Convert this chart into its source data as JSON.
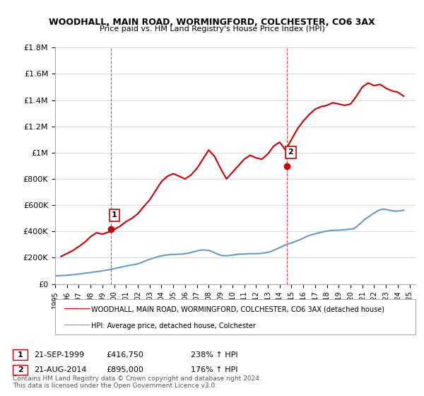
{
  "title": "WOODHALL, MAIN ROAD, WORMINGFORD, COLCHESTER, CO6 3AX",
  "subtitle": "Price paid vs. HM Land Registry's House Price Index (HPI)",
  "ylim": [
    0,
    1800000
  ],
  "xlim_start": 1995.0,
  "xlim_end": 2025.5,
  "yticks": [
    0,
    200000,
    400000,
    600000,
    800000,
    1000000,
    1200000,
    1400000,
    1600000,
    1800000
  ],
  "ytick_labels": [
    "£0",
    "£200K",
    "£400K",
    "£600K",
    "£800K",
    "£1M",
    "£1.2M",
    "£1.4M",
    "£1.6M",
    "£1.8M"
  ],
  "xtick_years": [
    1995,
    1996,
    1997,
    1998,
    1999,
    2000,
    2001,
    2002,
    2003,
    2004,
    2005,
    2006,
    2007,
    2008,
    2009,
    2010,
    2011,
    2012,
    2013,
    2014,
    2015,
    2016,
    2017,
    2018,
    2019,
    2020,
    2021,
    2022,
    2023,
    2024,
    2025
  ],
  "red_line_color": "#cc0000",
  "blue_line_color": "#6699cc",
  "vline_color": "#cc0000",
  "point1_x": 1999.72,
  "point1_y": 416750,
  "point2_x": 2014.64,
  "point2_y": 895000,
  "legend_label_red": "WOODHALL, MAIN ROAD, WORMINGFORD, COLCHESTER, CO6 3AX (detached house)",
  "legend_label_blue": "HPI: Average price, detached house, Colchester",
  "transaction1_label": "1",
  "transaction1_date": "21-SEP-1999",
  "transaction1_price": "£416,750",
  "transaction1_hpi": "238% ↑ HPI",
  "transaction2_label": "2",
  "transaction2_date": "21-AUG-2014",
  "transaction2_price": "£895,000",
  "transaction2_hpi": "176% ↑ HPI",
  "copyright_text": "Contains HM Land Registry data © Crown copyright and database right 2024.\nThis data is licensed under the Open Government Licence v3.0.",
  "background_color": "#ffffff",
  "grid_color": "#dddddd",
  "hpi_data_x": [
    1995.0,
    1995.25,
    1995.5,
    1995.75,
    1996.0,
    1996.25,
    1996.5,
    1996.75,
    1997.0,
    1997.25,
    1997.5,
    1997.75,
    1998.0,
    1998.25,
    1998.5,
    1998.75,
    1999.0,
    1999.25,
    1999.5,
    1999.75,
    2000.0,
    2000.25,
    2000.5,
    2000.75,
    2001.0,
    2001.25,
    2001.5,
    2001.75,
    2002.0,
    2002.25,
    2002.5,
    2002.75,
    2003.0,
    2003.25,
    2003.5,
    2003.75,
    2004.0,
    2004.25,
    2004.5,
    2004.75,
    2005.0,
    2005.25,
    2005.5,
    2005.75,
    2006.0,
    2006.25,
    2006.5,
    2006.75,
    2007.0,
    2007.25,
    2007.5,
    2007.75,
    2008.0,
    2008.25,
    2008.5,
    2008.75,
    2009.0,
    2009.25,
    2009.5,
    2009.75,
    2010.0,
    2010.25,
    2010.5,
    2010.75,
    2011.0,
    2011.25,
    2011.5,
    2011.75,
    2012.0,
    2012.25,
    2012.5,
    2012.75,
    2013.0,
    2013.25,
    2013.5,
    2013.75,
    2014.0,
    2014.25,
    2014.5,
    2014.75,
    2015.0,
    2015.25,
    2015.5,
    2015.75,
    2016.0,
    2016.25,
    2016.5,
    2016.75,
    2017.0,
    2017.25,
    2017.5,
    2017.75,
    2018.0,
    2018.25,
    2018.5,
    2018.75,
    2019.0,
    2019.25,
    2019.5,
    2019.75,
    2020.0,
    2020.25,
    2020.5,
    2020.75,
    2021.0,
    2021.25,
    2021.5,
    2021.75,
    2022.0,
    2022.25,
    2022.5,
    2022.75,
    2023.0,
    2023.25,
    2023.5,
    2023.75,
    2024.0,
    2024.25,
    2024.5
  ],
  "hpi_data_y": [
    62000,
    63000,
    64000,
    65000,
    67000,
    69000,
    71000,
    73000,
    76000,
    79000,
    82000,
    85000,
    88000,
    91000,
    94000,
    97000,
    100000,
    104000,
    108000,
    112000,
    117000,
    122000,
    127000,
    132000,
    137000,
    141000,
    145000,
    149000,
    154000,
    162000,
    171000,
    180000,
    188000,
    196000,
    203000,
    209000,
    215000,
    219000,
    222000,
    224000,
    225000,
    226000,
    227000,
    228000,
    231000,
    235000,
    240000,
    246000,
    252000,
    257000,
    259000,
    258000,
    255000,
    248000,
    238000,
    228000,
    219000,
    216000,
    215000,
    217000,
    220000,
    224000,
    227000,
    228000,
    228000,
    230000,
    231000,
    231000,
    231000,
    232000,
    234000,
    237000,
    241000,
    248000,
    257000,
    267000,
    277000,
    288000,
    298000,
    306000,
    313000,
    321000,
    330000,
    339000,
    349000,
    360000,
    369000,
    376000,
    382000,
    388000,
    394000,
    399000,
    403000,
    406000,
    408000,
    409000,
    410000,
    411000,
    413000,
    416000,
    418000,
    420000,
    435000,
    455000,
    475000,
    495000,
    510000,
    525000,
    540000,
    555000,
    565000,
    570000,
    568000,
    562000,
    558000,
    555000,
    555000,
    558000,
    562000
  ],
  "red_data_x": [
    1995.5,
    1996.0,
    1996.5,
    1997.0,
    1997.5,
    1998.0,
    1998.5,
    1999.0,
    1999.5,
    2000.0,
    2000.5,
    2001.0,
    2001.5,
    2002.0,
    2002.5,
    2003.0,
    2003.5,
    2004.0,
    2004.5,
    2005.0,
    2005.5,
    2006.0,
    2006.5,
    2007.0,
    2007.5,
    2008.0,
    2008.5,
    2009.0,
    2009.5,
    2010.0,
    2010.5,
    2011.0,
    2011.5,
    2012.0,
    2012.5,
    2013.0,
    2013.5,
    2014.0,
    2014.5,
    2015.0,
    2015.5,
    2016.0,
    2016.5,
    2017.0,
    2017.5,
    2018.0,
    2018.5,
    2019.0,
    2019.5,
    2020.0,
    2020.5,
    2021.0,
    2021.5,
    2022.0,
    2022.5,
    2023.0,
    2023.5,
    2024.0,
    2024.5
  ],
  "red_data_y": [
    210000,
    232000,
    255000,
    285000,
    318000,
    360000,
    390000,
    380000,
    395000,
    415000,
    440000,
    475000,
    500000,
    535000,
    590000,
    640000,
    710000,
    780000,
    820000,
    840000,
    820000,
    800000,
    830000,
    880000,
    950000,
    1020000,
    970000,
    880000,
    800000,
    850000,
    900000,
    950000,
    980000,
    960000,
    950000,
    990000,
    1050000,
    1080000,
    1020000,
    1100000,
    1180000,
    1240000,
    1290000,
    1330000,
    1350000,
    1360000,
    1380000,
    1370000,
    1360000,
    1370000,
    1430000,
    1500000,
    1530000,
    1510000,
    1520000,
    1490000,
    1470000,
    1460000,
    1430000
  ]
}
